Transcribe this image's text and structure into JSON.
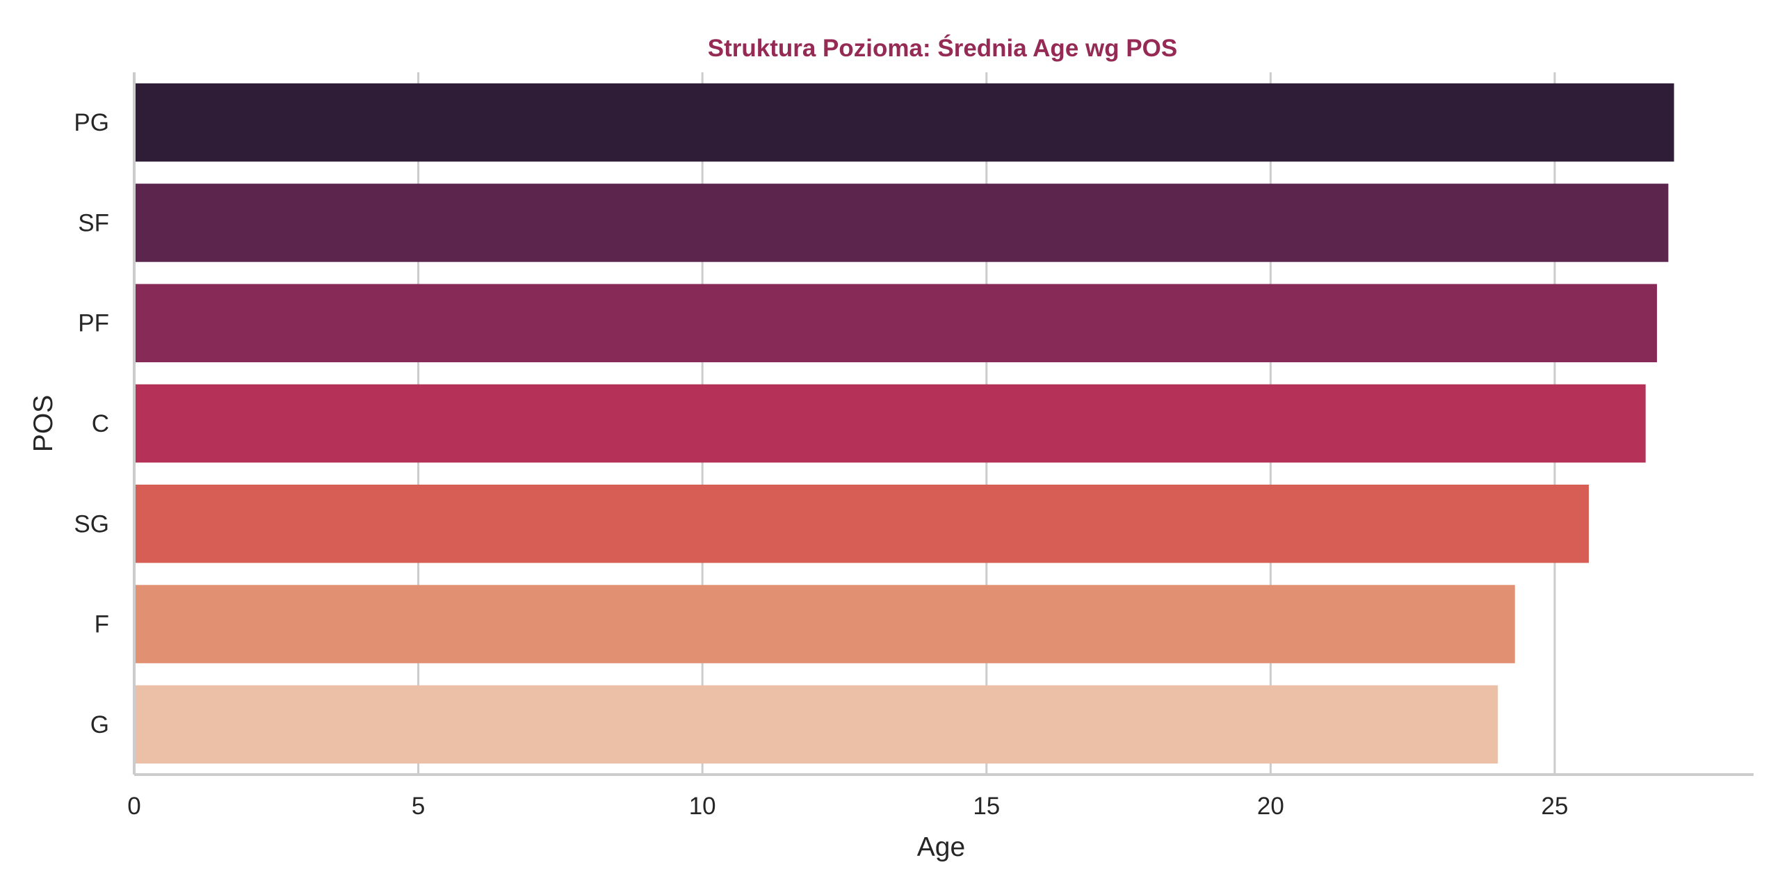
{
  "chart_data": {
    "type": "bar",
    "orientation": "horizontal",
    "title": "Struktura Pozioma: Średnia Age wg POS",
    "xlabel": "Age",
    "ylabel": "POS",
    "categories": [
      "PG",
      "SF",
      "PF",
      "C",
      "SG",
      "F",
      "G"
    ],
    "values": [
      27.1,
      27.0,
      26.8,
      26.6,
      25.6,
      24.3,
      24.0
    ],
    "colors": [
      "#2f1c37",
      "#5b254d",
      "#872a58",
      "#b53157",
      "#d65e55",
      "#e29072",
      "#ecc0a7"
    ],
    "xlim": [
      0,
      28.5
    ],
    "xticks": [
      0,
      5,
      10,
      15,
      20,
      25
    ],
    "grid": true,
    "title_color": "#952a55"
  }
}
